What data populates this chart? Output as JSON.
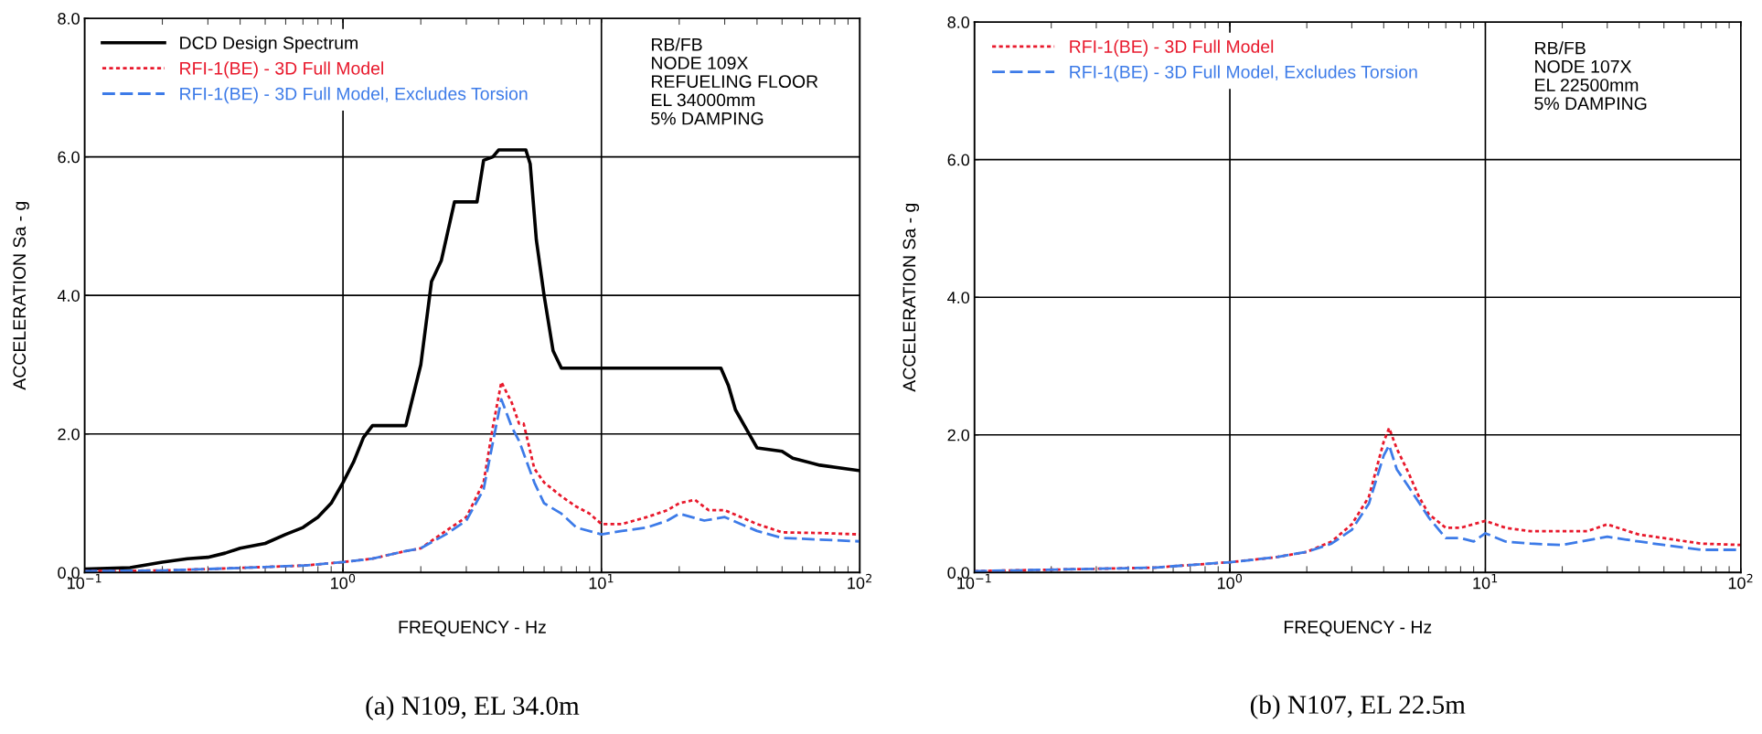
{
  "chart_data": [
    {
      "type": "line",
      "title": "(a) N109, EL 34.0m",
      "xlabel": "FREQUENCY - Hz",
      "ylabel": "ACCELERATION Sa - g",
      "log": "x",
      "grid": true,
      "legend": "top left",
      "marker": "none",
      "xlim": [
        0.1,
        100
      ],
      "xticks": [
        {
          "value": 0.1,
          "label": "10$^{−1}$"
        },
        {
          "value": 1,
          "label": "10$^{0}$"
        },
        {
          "value": 10,
          "label": "10$^{1}$"
        },
        {
          "value": 100,
          "label": "10$^{2}$"
        }
      ],
      "ylim": [
        0,
        8
      ],
      "yticks": [
        {
          "value": 0,
          "label": "0.0"
        },
        {
          "value": 2,
          "label": "2.0"
        },
        {
          "value": 4,
          "label": "4.0"
        },
        {
          "value": 6,
          "label": "6.0"
        },
        {
          "value": 8,
          "label": "8.0"
        }
      ],
      "annotations": [
        "RB/FB\nNODE 109X\nREFUELING FLOOR\nEL 34000mm\n5% DAMPING"
      ],
      "series": [
        {
          "name": "DCD Design Spectrum",
          "color": "#000000",
          "line_style": "solid",
          "x": [
            0.1,
            0.15,
            0.2,
            0.25,
            0.3,
            0.35,
            0.4,
            0.5,
            0.6,
            0.7,
            0.8,
            0.9,
            1.0,
            1.1,
            1.2,
            1.3,
            1.75,
            2.0,
            2.2,
            2.4,
            2.7,
            3.3,
            3.5,
            3.8,
            4.0,
            5.1,
            5.3,
            5.6,
            6.0,
            6.5,
            7.0,
            29,
            31,
            33,
            36,
            40,
            50,
            55,
            70,
            100
          ],
          "values": [
            0.05,
            0.07,
            0.15,
            0.2,
            0.22,
            0.28,
            0.35,
            0.42,
            0.55,
            0.65,
            0.8,
            1.0,
            1.3,
            1.6,
            1.95,
            2.12,
            2.12,
            3.0,
            4.2,
            4.5,
            5.35,
            5.35,
            5.95,
            6.0,
            6.1,
            6.1,
            5.9,
            4.8,
            4.0,
            3.2,
            2.95,
            2.95,
            2.7,
            2.35,
            2.1,
            1.8,
            1.75,
            1.65,
            1.55,
            1.47
          ]
        },
        {
          "name": "RFI-1(BE) - 3D Full Model",
          "color": "#e8192c",
          "line_style": "dotted",
          "x": [
            0.1,
            0.2,
            0.3,
            0.5,
            0.7,
            1.0,
            1.3,
            1.7,
            2.0,
            2.5,
            3.0,
            3.5,
            3.8,
            4.1,
            4.5,
            4.8,
            5.0,
            5.5,
            6.0,
            7,
            8,
            9,
            10,
            12,
            15,
            18,
            20,
            23,
            26,
            30,
            40,
            50,
            70,
            100
          ],
          "values": [
            0.02,
            0.03,
            0.05,
            0.08,
            0.1,
            0.15,
            0.2,
            0.3,
            0.35,
            0.6,
            0.8,
            1.3,
            2.1,
            2.75,
            2.45,
            2.15,
            2.15,
            1.5,
            1.3,
            1.1,
            0.95,
            0.85,
            0.7,
            0.7,
            0.8,
            0.9,
            1.0,
            1.05,
            0.9,
            0.9,
            0.7,
            0.58,
            0.57,
            0.55
          ]
        },
        {
          "name": "RFI-1(BE) - 3D Full Model, Excludes Torsion",
          "color": "#3d7be8",
          "line_style": "dashed",
          "x": [
            0.1,
            0.2,
            0.3,
            0.5,
            0.7,
            1.0,
            1.3,
            1.7,
            2.0,
            2.5,
            3.0,
            3.5,
            4.1,
            4.5,
            4.8,
            5.5,
            6,
            7,
            8,
            10,
            12,
            15,
            18,
            20,
            25,
            30,
            40,
            50,
            100
          ],
          "values": [
            0.02,
            0.03,
            0.05,
            0.08,
            0.1,
            0.15,
            0.2,
            0.3,
            0.35,
            0.55,
            0.75,
            1.2,
            2.5,
            2.1,
            1.9,
            1.3,
            1.0,
            0.85,
            0.65,
            0.55,
            0.6,
            0.65,
            0.75,
            0.85,
            0.75,
            0.8,
            0.6,
            0.5,
            0.45
          ]
        }
      ]
    },
    {
      "type": "line",
      "title": "(b) N107, EL 22.5m",
      "xlabel": "FREQUENCY - Hz",
      "ylabel": "ACCELERATION Sa - g",
      "log": "x",
      "grid": true,
      "legend": "top left",
      "marker": "none",
      "xlim": [
        0.1,
        100
      ],
      "xticks": [
        {
          "value": 0.1,
          "label": "10$^{−1}$"
        },
        {
          "value": 1,
          "label": "10$^{0}$"
        },
        {
          "value": 10,
          "label": "10$^{1}$"
        },
        {
          "value": 100,
          "label": "10$^{2}$"
        }
      ],
      "ylim": [
        0,
        8
      ],
      "yticks": [
        {
          "value": 0,
          "label": "0.0"
        },
        {
          "value": 2,
          "label": "2.0"
        },
        {
          "value": 4,
          "label": "4.0"
        },
        {
          "value": 6,
          "label": "6.0"
        },
        {
          "value": 8,
          "label": "8.0"
        }
      ],
      "annotations": [
        "RB/FB\nNODE 107X\nEL 22500mm\n5% DAMPING"
      ],
      "series": [
        {
          "name": "RFI-1(BE) - 3D Full Model",
          "color": "#e8192c",
          "line_style": "dotted",
          "x": [
            0.1,
            0.5,
            1,
            1.5,
            2,
            2.5,
            3,
            3.5,
            4.0,
            4.2,
            4.5,
            5,
            5.5,
            6,
            7,
            8,
            10,
            12,
            15,
            20,
            25,
            30,
            40,
            50,
            70,
            100
          ],
          "values": [
            0.02,
            0.07,
            0.15,
            0.22,
            0.3,
            0.45,
            0.7,
            1.1,
            1.9,
            2.1,
            1.8,
            1.45,
            1.1,
            0.85,
            0.65,
            0.65,
            0.75,
            0.65,
            0.6,
            0.6,
            0.6,
            0.7,
            0.55,
            0.5,
            0.42,
            0.4
          ]
        },
        {
          "name": "RFI-1(BE) - 3D Full Model, Excludes Torsion",
          "color": "#3d7be8",
          "line_style": "dashed",
          "x": [
            0.1,
            0.5,
            1,
            1.5,
            2,
            2.5,
            3,
            3.5,
            4.0,
            4.2,
            4.5,
            5,
            6,
            7,
            8,
            9,
            10,
            12,
            15,
            20,
            30,
            40,
            50,
            70,
            100
          ],
          "values": [
            0.02,
            0.07,
            0.15,
            0.22,
            0.3,
            0.42,
            0.62,
            1.0,
            1.7,
            1.85,
            1.5,
            1.25,
            0.8,
            0.5,
            0.5,
            0.45,
            0.57,
            0.45,
            0.42,
            0.4,
            0.52,
            0.45,
            0.4,
            0.33,
            0.33
          ]
        }
      ]
    }
  ]
}
